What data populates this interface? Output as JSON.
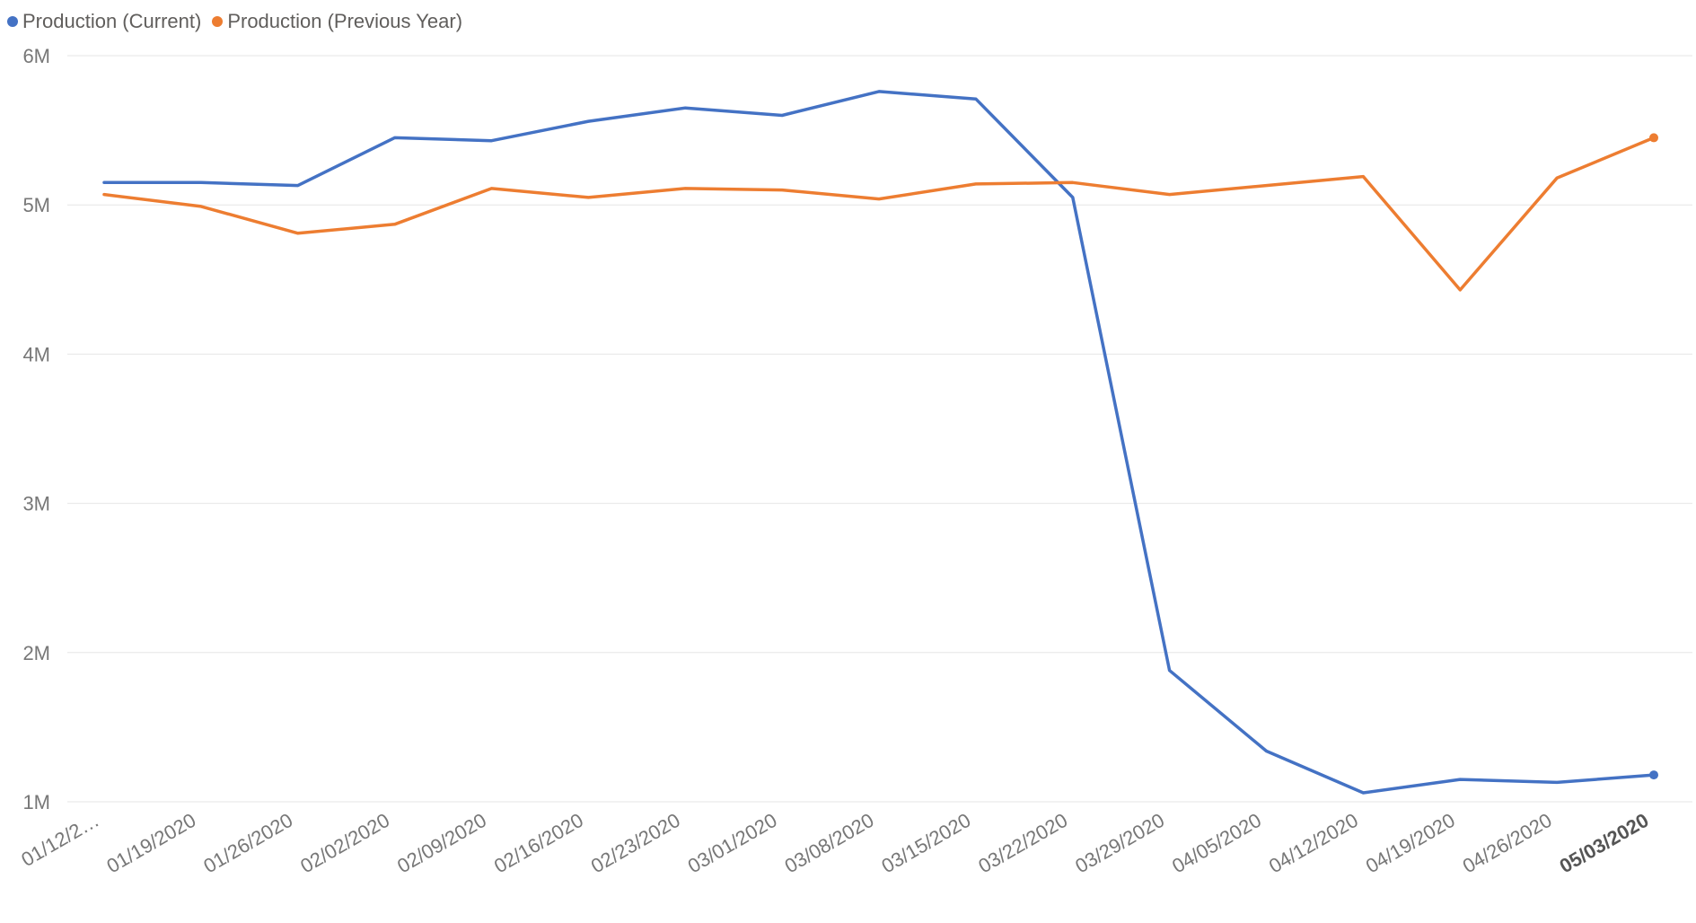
{
  "chart_data": {
    "type": "line",
    "title": "",
    "xlabel": "",
    "ylabel": "",
    "categories": [
      "01/12/2…",
      "01/19/2020",
      "01/26/2020",
      "02/02/2020",
      "02/09/2020",
      "02/16/2020",
      "02/23/2020",
      "03/01/2020",
      "03/08/2020",
      "03/15/2020",
      "03/22/2020",
      "03/29/2020",
      "04/05/2020",
      "04/12/2020",
      "04/19/2020",
      "04/26/2020",
      "05/03/2020"
    ],
    "highlighted_category": "05/03/2020",
    "series": [
      {
        "name": "Production (Current)",
        "color": "#4472c4",
        "values": [
          5150000,
          5150000,
          5130000,
          5450000,
          5430000,
          5560000,
          5650000,
          5600000,
          5760000,
          5710000,
          5050000,
          1880000,
          1340000,
          1060000,
          1150000,
          1130000,
          1180000
        ]
      },
      {
        "name": "Production (Previous Year)",
        "color": "#ed7d31",
        "values": [
          5070000,
          4990000,
          4810000,
          4870000,
          5110000,
          5050000,
          5110000,
          5100000,
          5040000,
          5140000,
          5150000,
          5070000,
          5130000,
          5190000,
          4430000,
          5180000,
          5450000
        ]
      }
    ],
    "yticks": [
      {
        "value": 1000000,
        "label": "1M"
      },
      {
        "value": 2000000,
        "label": "2M"
      },
      {
        "value": 3000000,
        "label": "3M"
      },
      {
        "value": 4000000,
        "label": "4M"
      },
      {
        "value": 5000000,
        "label": "5M"
      },
      {
        "value": 6000000,
        "label": "6M"
      }
    ],
    "ylim": [
      1000000,
      6000000
    ],
    "grid": true,
    "legend_position": "top-left"
  },
  "legend": {
    "current_label": "Production (Current)",
    "previous_label": "Production (Previous Year)"
  }
}
